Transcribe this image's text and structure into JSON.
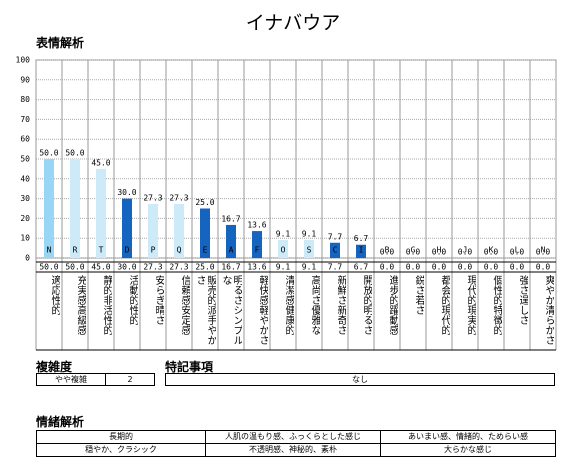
{
  "chart_data": {
    "type": "bar",
    "title": "イナバウア",
    "subtitle": "表情解析",
    "codes": [
      "N",
      "R",
      "T",
      "D",
      "P",
      "Q",
      "E",
      "A",
      "F",
      "O",
      "S",
      "C",
      "I",
      "B",
      "G",
      "H",
      "J",
      "K",
      "L",
      "N"
    ],
    "categories": [
      "適応性的",
      "充実感高級感",
      "静的非活性的",
      "活動的性的",
      "安らぎ晴さ",
      "信頼感安定感",
      "販売的派手やかさ",
      "明るさシンプルな",
      "軽快感軽やかさ",
      "清潔感健康的",
      "高尚さ優雅な",
      "新鮮さ新奇さ",
      "開放的明るさ",
      "進歩的躍動感",
      "鋭さ若さ",
      "都会的現代的",
      "現代的現実的",
      "個性的特徴的",
      "強さ逞しさ",
      "爽やか清らかさ"
    ],
    "values": [
      50.0,
      50.0,
      45.0,
      30.0,
      27.3,
      27.3,
      25.0,
      16.7,
      13.6,
      9.1,
      9.1,
      7.7,
      6.7,
      0,
      0,
      0,
      0,
      0,
      0,
      0
    ],
    "value_labels": [
      "50.0",
      "50.0",
      "45.0",
      "30.0",
      "27.3",
      "27.3",
      "25.0",
      "16.7",
      "13.6",
      "9.1",
      "9.1",
      "7.7",
      "6.7",
      "0.0",
      "0.0",
      "0.0",
      "0.0",
      "0.0",
      "0.0",
      "0.0"
    ],
    "colors": [
      "#99d5f5",
      "#cdeaf8",
      "#cdeaf8",
      "#1565c0",
      "#cdeaf8",
      "#cdeaf8",
      "#1565c0",
      "#1565c0",
      "#1565c0",
      "#cdeaf8",
      "#cdeaf8",
      "#1565c0",
      "#1565c0",
      "#1565c0",
      "#1565c0",
      "#1565c0",
      "#1565c0",
      "#1565c0",
      "#1565c0",
      "#1565c0"
    ],
    "ylim": [
      0,
      100
    ],
    "yticks": [
      0,
      10,
      20,
      30,
      40,
      50,
      60,
      70,
      80,
      90,
      100
    ],
    "grid": true
  },
  "complexity": {
    "title": "複雑度",
    "label": "やや複雑",
    "value": "2"
  },
  "notes": {
    "title": "特記事項",
    "text": "なし"
  },
  "emotion": {
    "title": "情緒解析",
    "rows": [
      [
        "長期的",
        "人肌の温もり感、ふっくらとした感じ",
        "あいまい感、情緒的、ためらい感"
      ],
      [
        "穏やか、クラシック",
        "不透明感、神秘的、素朴",
        "大らかな感じ"
      ]
    ]
  }
}
